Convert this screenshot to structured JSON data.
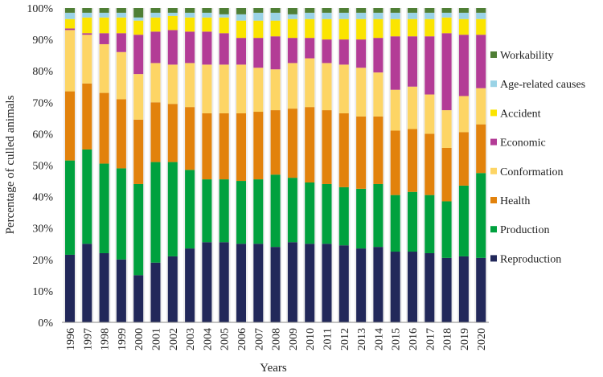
{
  "chart_data": {
    "type": "bar",
    "stacked": true,
    "title": "",
    "xlabel": "Years",
    "ylabel": "Percentage of culled animals",
    "ylim": [
      0,
      100
    ],
    "yticks": [
      "0%",
      "10%",
      "20%",
      "30%",
      "40%",
      "50%",
      "60%",
      "70%",
      "80%",
      "90%",
      "100%"
    ],
    "legend_position": "right",
    "categories": [
      "1996",
      "1997",
      "1998",
      "1999",
      "2000",
      "2001",
      "2002",
      "2003",
      "2004",
      "2005",
      "2006",
      "2007",
      "2008",
      "2009",
      "2010",
      "2011",
      "2012",
      "2013",
      "2014",
      "2015",
      "2016",
      "2017",
      "2018",
      "2019",
      "2020"
    ],
    "series": [
      {
        "name": "Reproduction",
        "color": "#22285a",
        "values": [
          21.5,
          25,
          22,
          20,
          15,
          19,
          21,
          23.5,
          25.5,
          25.5,
          25,
          25,
          24,
          25.5,
          25,
          25,
          24.5,
          23.5,
          24,
          22.5,
          22.5,
          22,
          20.5,
          21,
          20.5
        ]
      },
      {
        "name": "Production",
        "color": "#00a13e",
        "values": [
          30,
          30,
          28.5,
          29,
          29,
          32,
          30,
          25,
          20,
          20,
          20,
          20.5,
          23,
          20.5,
          19.5,
          19,
          18.5,
          19,
          20,
          18,
          19,
          18.5,
          18,
          22.5,
          27
        ]
      },
      {
        "name": "Health",
        "color": "#e2820c",
        "values": [
          22,
          21,
          22.5,
          22,
          20.5,
          19,
          18.5,
          20,
          21,
          21,
          21.5,
          21.5,
          20.5,
          22,
          24,
          23.5,
          23.5,
          23,
          21.5,
          20.5,
          20,
          19.5,
          17,
          17,
          15.5
        ]
      },
      {
        "name": "Conformation",
        "color": "#fdd565",
        "values": [
          19.5,
          15.5,
          15.5,
          15,
          14.5,
          12.5,
          12.5,
          14,
          15.5,
          15.5,
          15.5,
          14,
          13,
          14.5,
          15.5,
          15,
          15.5,
          15.5,
          14,
          13,
          13.5,
          12.5,
          12,
          11.5,
          11.5
        ]
      },
      {
        "name": "Economic",
        "color": "#b33c96",
        "values": [
          0.5,
          0.5,
          3.5,
          6,
          12.5,
          10,
          11,
          10,
          10.5,
          10,
          8.5,
          9.5,
          10.5,
          8,
          6.5,
          7.5,
          8,
          9,
          11,
          17,
          16,
          18.5,
          24.5,
          19.5,
          17
        ]
      },
      {
        "name": "Accident",
        "color": "#fbe400",
        "values": [
          3,
          5,
          5,
          5,
          4.5,
          4.5,
          4.5,
          4.5,
          4.5,
          5,
          5.5,
          5.5,
          5,
          6,
          6,
          6.5,
          6.5,
          6.5,
          6,
          5.5,
          5.5,
          5.5,
          5,
          5,
          5
        ]
      },
      {
        "name": "Age-related causes",
        "color": "#9ad3e6",
        "values": [
          2,
          1.5,
          1.5,
          1.5,
          1,
          1.5,
          1,
          1.5,
          1.5,
          1,
          2,
          2.5,
          2.5,
          1.5,
          2,
          2,
          2,
          2,
          2,
          2,
          2,
          2,
          1.5,
          2,
          2
        ]
      },
      {
        "name": "Workability",
        "color": "#4f7f35",
        "values": [
          1.5,
          1.5,
          1.5,
          1.5,
          3,
          1.5,
          1.5,
          1.5,
          1.5,
          2,
          2,
          1.5,
          1.5,
          2,
          1.5,
          1.5,
          1.5,
          1.5,
          1.5,
          1.5,
          1.5,
          1.5,
          1.5,
          1.5,
          1.5
        ]
      }
    ]
  }
}
